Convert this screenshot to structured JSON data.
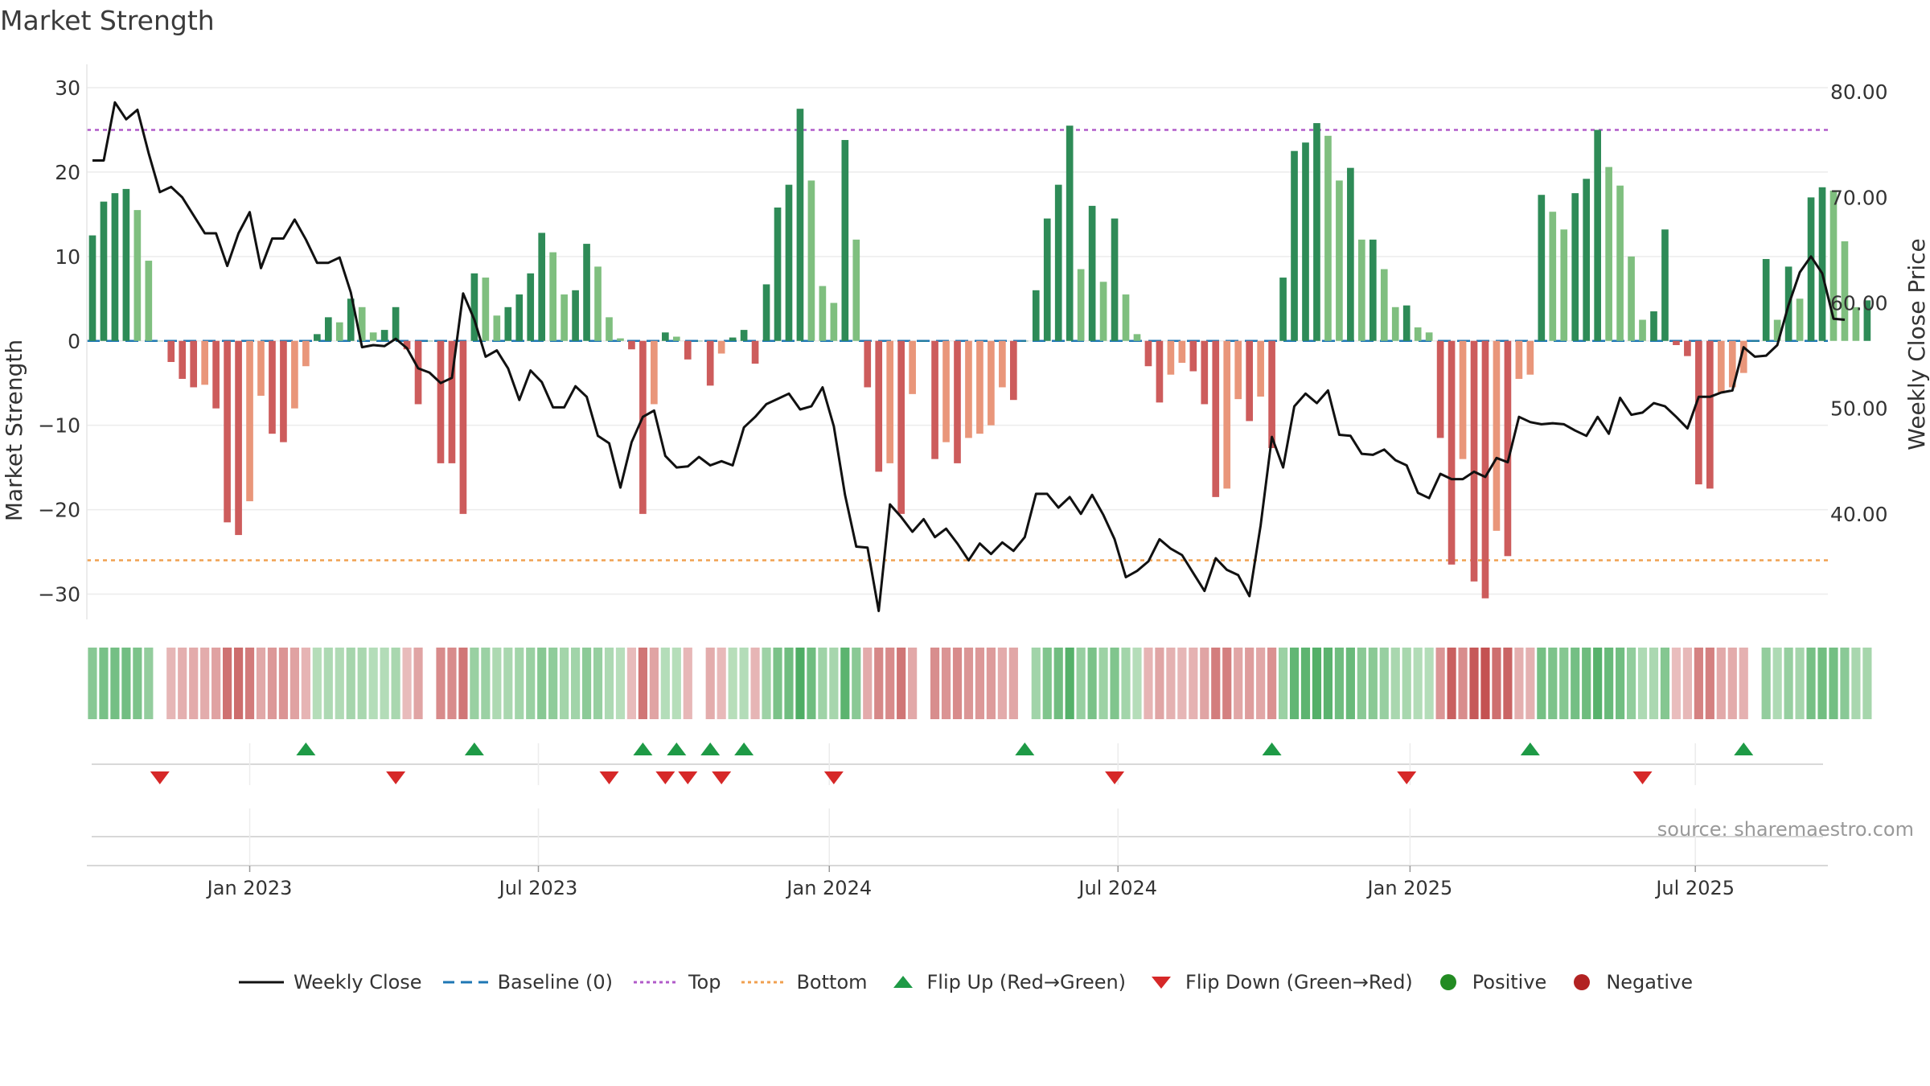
{
  "chart_data": {
    "type": "bar",
    "title": "Market Strength",
    "ylabel": "Market Strength",
    "y2label": "Weekly Close Price",
    "ylim": [
      -33,
      32
    ],
    "y_ticks": [
      30,
      20,
      10,
      0,
      -10,
      -20,
      -30
    ],
    "y_tick_labels": [
      "30",
      "20",
      "10",
      "0",
      "−10",
      "−20",
      "−30"
    ],
    "y2lim": [
      30,
      82
    ],
    "y2_ticks": [
      80,
      70,
      60,
      50,
      40
    ],
    "y2_tick_labels": [
      "80.00",
      "70.00",
      "60.00",
      "50.00",
      "40.00"
    ],
    "top_level": 25,
    "bottom_level": -26,
    "x_index_range": [
      -0.5,
      154.5
    ],
    "x_ticks": [
      {
        "index": 14,
        "label": "Jan 2023"
      },
      {
        "index": 39.7,
        "label": "Jul 2023"
      },
      {
        "index": 65.6,
        "label": "Jan 2024"
      },
      {
        "index": 91.3,
        "label": "Jul 2024"
      },
      {
        "index": 117.3,
        "label": "Jan 2025"
      },
      {
        "index": 142.7,
        "label": "Jul 2025"
      }
    ],
    "strength": [
      12.5,
      16.5,
      17.5,
      18,
      15.5,
      9.5,
      0,
      -2.5,
      -4.5,
      -5.5,
      -5.2,
      -8,
      -21.5,
      -23,
      -19,
      -6.5,
      -11,
      -12,
      -8,
      -3,
      0.8,
      2.8,
      2.2,
      5,
      4,
      1,
      1.3,
      4,
      -1,
      -7.5,
      0,
      -14.5,
      -14.5,
      -20.5,
      8,
      7.5,
      3,
      4,
      5.5,
      8,
      12.8,
      10.5,
      5.5,
      6,
      11.5,
      8.8,
      2.8,
      0.3,
      -1,
      -20.5,
      -7.5,
      1,
      0.5,
      -2.2,
      0,
      -5.3,
      -1.5,
      0.4,
      1.3,
      -2.7,
      6.7,
      15.8,
      18.5,
      27.5,
      19,
      6.5,
      4.5,
      23.8,
      12,
      -5.5,
      -15.5,
      -14.5,
      -20.5,
      -6.3,
      0,
      -14,
      -12,
      -14.5,
      -11.5,
      -11,
      -10,
      -5.5,
      -7,
      0,
      6,
      14.5,
      18.5,
      25.5,
      8.5,
      16,
      7,
      14.5,
      5.5,
      0.8,
      -3,
      -7.3,
      -4,
      -2.6,
      -3.6,
      -7.5,
      -18.5,
      -17.5,
      -6.9,
      -9.5,
      -6.6,
      -12.7,
      7.5,
      22.5,
      23.5,
      25.8,
      24.3,
      19,
      20.5,
      12,
      12,
      8.5,
      4,
      4.2,
      1.6,
      1,
      -11.5,
      -26.5,
      -14,
      -28.5,
      -30.5,
      -22.5,
      -25.5,
      -4.5,
      -4,
      17.3,
      15.3,
      13.2,
      17.5,
      19.2,
      25,
      20.6,
      18.4,
      10,
      2.5,
      3.5,
      13.2,
      -0.5,
      -1.8,
      -17,
      -17.5,
      -6.2,
      -5.5,
      -3.8,
      0,
      9.7,
      2.5,
      8.8,
      5,
      17,
      18.2,
      17.8,
      11.8,
      4,
      4.8
    ],
    "weekly_close": [
      73.5,
      73.5,
      79,
      77.4,
      78.3,
      74.2,
      70.5,
      71,
      70,
      68.3,
      66.6,
      66.6,
      63.5,
      66.6,
      68.6,
      63.3,
      66.1,
      66.1,
      67.9,
      66,
      63.8,
      63.8,
      64.3,
      61,
      55.8,
      56,
      55.9,
      56.6,
      55.7,
      53.8,
      53.4,
      52.4,
      52.9,
      60.9,
      58.4,
      54.9,
      55.5,
      53.8,
      50.8,
      53.6,
      52.5,
      50.1,
      50.1,
      52.1,
      51.1,
      47.4,
      46.7,
      42.5,
      46.8,
      49.2,
      49.8,
      45.5,
      44.4,
      44.5,
      45.4,
      44.6,
      45,
      44.6,
      48.2,
      49.2,
      50.4,
      50.9,
      51.4,
      49.9,
      50.2,
      52,
      48.3,
      41.8,
      36.9,
      36.8,
      30.8,
      40.9,
      39.7,
      38.3,
      39.5,
      37.8,
      38.6,
      37.2,
      35.6,
      37.2,
      36.2,
      37.3,
      36.5,
      37.8,
      41.9,
      41.9,
      40.6,
      41.6,
      40,
      41.8,
      39.9,
      37.6,
      34,
      34.6,
      35.5,
      37.6,
      36.7,
      36.1,
      34.4,
      32.7,
      35.8,
      34.7,
      34.2,
      32.2,
      38.9,
      47.3,
      44.4,
      50.2,
      51.4,
      50.5,
      51.7,
      47.5,
      47.4,
      45.7,
      45.6,
      46.1,
      45.1,
      44.6,
      42,
      41.5,
      43.8,
      43.3,
      43.3,
      44,
      43.5,
      45.3,
      44.9,
      49.2,
      48.7,
      48.5,
      48.6,
      48.5,
      47.9,
      47.4,
      49.2,
      47.6,
      51,
      49.4,
      49.6,
      50.5,
      50.2,
      49.2,
      48.1,
      51.1,
      51.1,
      51.5,
      51.7,
      55.8,
      54.9,
      55,
      56,
      59.8,
      62.9,
      64.4,
      62.8,
      58.5,
      58.4
    ],
    "flip_up": [
      19,
      34,
      49,
      52,
      55,
      58,
      83,
      105,
      128,
      147
    ],
    "flip_down": [
      6,
      27,
      46,
      51,
      53,
      56,
      66,
      91,
      117,
      138
    ],
    "legend": [
      {
        "key": "weekly_close",
        "label": "Weekly Close"
      },
      {
        "key": "baseline",
        "label": "Baseline (0)"
      },
      {
        "key": "top",
        "label": "Top"
      },
      {
        "key": "bottom",
        "label": "Bottom"
      },
      {
        "key": "flip_up",
        "label": "Flip Up (Red→Green)"
      },
      {
        "key": "flip_down",
        "label": "Flip Down (Green→Red)"
      },
      {
        "key": "positive",
        "label": "Positive"
      },
      {
        "key": "negative",
        "label": "Negative"
      }
    ],
    "source": "source: sharemaestro.com"
  },
  "colors": {
    "green_dark": "#2e8b57",
    "green_light": "#7fbf7f",
    "red_dark": "#cd5c5c",
    "red_light": "#e9967a",
    "line": "#111111",
    "baseline": "#1f77b4",
    "top": "#b15bc9",
    "bottom": "#f0a050",
    "flip_up": "#1e9a46",
    "flip_down": "#d62828",
    "positive": "#228b22",
    "negative": "#b22222"
  }
}
